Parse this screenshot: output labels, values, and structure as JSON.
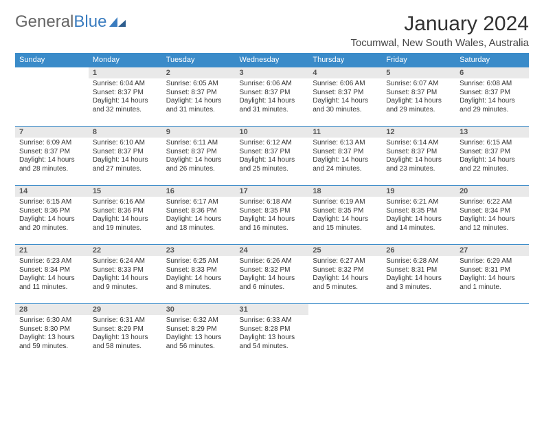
{
  "brand": {
    "part1": "General",
    "part2": "Blue"
  },
  "title": "January 2024",
  "location": "Tocumwal, New South Wales, Australia",
  "colors": {
    "header_bg": "#3a8bc9",
    "header_text": "#ffffff",
    "daynum_bg": "#e9e9e9",
    "row_border": "#3a8bc9",
    "text": "#333333",
    "brand_blue": "#3a7cbf"
  },
  "weekdays": [
    "Sunday",
    "Monday",
    "Tuesday",
    "Wednesday",
    "Thursday",
    "Friday",
    "Saturday"
  ],
  "leading_blanks": 1,
  "days": [
    {
      "n": 1,
      "sunrise": "6:04 AM",
      "sunset": "8:37 PM",
      "daylight": "14 hours and 32 minutes."
    },
    {
      "n": 2,
      "sunrise": "6:05 AM",
      "sunset": "8:37 PM",
      "daylight": "14 hours and 31 minutes."
    },
    {
      "n": 3,
      "sunrise": "6:06 AM",
      "sunset": "8:37 PM",
      "daylight": "14 hours and 31 minutes."
    },
    {
      "n": 4,
      "sunrise": "6:06 AM",
      "sunset": "8:37 PM",
      "daylight": "14 hours and 30 minutes."
    },
    {
      "n": 5,
      "sunrise": "6:07 AM",
      "sunset": "8:37 PM",
      "daylight": "14 hours and 29 minutes."
    },
    {
      "n": 6,
      "sunrise": "6:08 AM",
      "sunset": "8:37 PM",
      "daylight": "14 hours and 29 minutes."
    },
    {
      "n": 7,
      "sunrise": "6:09 AM",
      "sunset": "8:37 PM",
      "daylight": "14 hours and 28 minutes."
    },
    {
      "n": 8,
      "sunrise": "6:10 AM",
      "sunset": "8:37 PM",
      "daylight": "14 hours and 27 minutes."
    },
    {
      "n": 9,
      "sunrise": "6:11 AM",
      "sunset": "8:37 PM",
      "daylight": "14 hours and 26 minutes."
    },
    {
      "n": 10,
      "sunrise": "6:12 AM",
      "sunset": "8:37 PM",
      "daylight": "14 hours and 25 minutes."
    },
    {
      "n": 11,
      "sunrise": "6:13 AM",
      "sunset": "8:37 PM",
      "daylight": "14 hours and 24 minutes."
    },
    {
      "n": 12,
      "sunrise": "6:14 AM",
      "sunset": "8:37 PM",
      "daylight": "14 hours and 23 minutes."
    },
    {
      "n": 13,
      "sunrise": "6:15 AM",
      "sunset": "8:37 PM",
      "daylight": "14 hours and 22 minutes."
    },
    {
      "n": 14,
      "sunrise": "6:15 AM",
      "sunset": "8:36 PM",
      "daylight": "14 hours and 20 minutes."
    },
    {
      "n": 15,
      "sunrise": "6:16 AM",
      "sunset": "8:36 PM",
      "daylight": "14 hours and 19 minutes."
    },
    {
      "n": 16,
      "sunrise": "6:17 AM",
      "sunset": "8:36 PM",
      "daylight": "14 hours and 18 minutes."
    },
    {
      "n": 17,
      "sunrise": "6:18 AM",
      "sunset": "8:35 PM",
      "daylight": "14 hours and 16 minutes."
    },
    {
      "n": 18,
      "sunrise": "6:19 AM",
      "sunset": "8:35 PM",
      "daylight": "14 hours and 15 minutes."
    },
    {
      "n": 19,
      "sunrise": "6:21 AM",
      "sunset": "8:35 PM",
      "daylight": "14 hours and 14 minutes."
    },
    {
      "n": 20,
      "sunrise": "6:22 AM",
      "sunset": "8:34 PM",
      "daylight": "14 hours and 12 minutes."
    },
    {
      "n": 21,
      "sunrise": "6:23 AM",
      "sunset": "8:34 PM",
      "daylight": "14 hours and 11 minutes."
    },
    {
      "n": 22,
      "sunrise": "6:24 AM",
      "sunset": "8:33 PM",
      "daylight": "14 hours and 9 minutes."
    },
    {
      "n": 23,
      "sunrise": "6:25 AM",
      "sunset": "8:33 PM",
      "daylight": "14 hours and 8 minutes."
    },
    {
      "n": 24,
      "sunrise": "6:26 AM",
      "sunset": "8:32 PM",
      "daylight": "14 hours and 6 minutes."
    },
    {
      "n": 25,
      "sunrise": "6:27 AM",
      "sunset": "8:32 PM",
      "daylight": "14 hours and 5 minutes."
    },
    {
      "n": 26,
      "sunrise": "6:28 AM",
      "sunset": "8:31 PM",
      "daylight": "14 hours and 3 minutes."
    },
    {
      "n": 27,
      "sunrise": "6:29 AM",
      "sunset": "8:31 PM",
      "daylight": "14 hours and 1 minute."
    },
    {
      "n": 28,
      "sunrise": "6:30 AM",
      "sunset": "8:30 PM",
      "daylight": "13 hours and 59 minutes."
    },
    {
      "n": 29,
      "sunrise": "6:31 AM",
      "sunset": "8:29 PM",
      "daylight": "13 hours and 58 minutes."
    },
    {
      "n": 30,
      "sunrise": "6:32 AM",
      "sunset": "8:29 PM",
      "daylight": "13 hours and 56 minutes."
    },
    {
      "n": 31,
      "sunrise": "6:33 AM",
      "sunset": "8:28 PM",
      "daylight": "13 hours and 54 minutes."
    }
  ],
  "labels": {
    "sunrise": "Sunrise:",
    "sunset": "Sunset:",
    "daylight": "Daylight:"
  }
}
